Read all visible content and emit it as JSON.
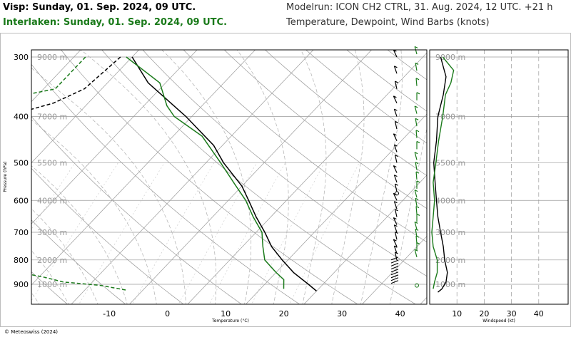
{
  "header": {
    "station_1": "Visp: Sunday, 01. Sep. 2024, 09 UTC.",
    "station_2": "Interlaken: Sunday, 01. Sep. 2024, 09 UTC.",
    "model_run": "Modelrun: ICON CH2 CTRL, 31. Aug. 2024, 12 UTC. +21 h",
    "variables": "Temperature, Dewpoint, Wind Barbs (knots)"
  },
  "footer": {
    "copyright": "© Meteoswiss (2024)"
  },
  "colors": {
    "station_1": "#000000",
    "station_2": "#1a7a1a",
    "grid": "#9a9a9a"
  },
  "chart_data": [
    {
      "type": "line",
      "name": "skew-t",
      "xlabel": "Temperature (°C)",
      "ylabel": "Pressure (hPa)",
      "x_ticks": [
        -10,
        0,
        10,
        20,
        30,
        40
      ],
      "y_ticks": [
        300,
        400,
        500,
        600,
        700,
        800,
        900
      ],
      "altitude_labels": [
        {
          "label": "9000 m",
          "p": 300
        },
        {
          "label": "7000 m",
          "p": 400
        },
        {
          "label": "5500 m",
          "p": 500
        },
        {
          "label": "4000 m",
          "p": 600
        },
        {
          "label": "3000 m",
          "p": 700
        },
        {
          "label": "2000 m",
          "p": 800
        },
        {
          "label": "1000 m",
          "p": 900
        }
      ],
      "series": [
        {
          "station": "Visp",
          "variable": "temperature",
          "points": [
            [
              300,
              -40
            ],
            [
              340,
              -33
            ],
            [
              400,
              -21
            ],
            [
              460,
              -11.5
            ],
            [
              500,
              -7
            ],
            [
              560,
              0
            ],
            [
              600,
              3.5
            ],
            [
              650,
              7.5
            ],
            [
              700,
              11.5
            ],
            [
              750,
              15
            ],
            [
              800,
              19
            ],
            [
              850,
              23
            ],
            [
              900,
              27.5
            ],
            [
              930,
              30
            ]
          ]
        },
        {
          "station": "Visp",
          "variable": "dewpoint",
          "points": [
            [
              300,
              -42
            ],
            [
              350,
              -43
            ],
            [
              375,
              -46
            ],
            [
              400,
              -52
            ],
            [
              425,
              -55
            ],
            [
              450,
              -65
            ],
            [
              470,
              -63
            ],
            [
              490,
              -50
            ],
            [
              510,
              -57
            ],
            [
              540,
              -60
            ],
            [
              570,
              -56
            ],
            [
              600,
              -53
            ],
            [
              640,
              -46
            ],
            [
              680,
              -40
            ],
            [
              720,
              -33
            ],
            [
              760,
              -30
            ],
            [
              800,
              -27
            ],
            [
              850,
              -25
            ],
            [
              880,
              -26
            ],
            [
              910,
              -24
            ]
          ]
        },
        {
          "station": "Interlaken",
          "variable": "temperature",
          "points": [
            [
              300,
              -41
            ],
            [
              340,
              -31
            ],
            [
              380,
              -26
            ],
            [
              400,
              -23
            ],
            [
              440,
              -15
            ],
            [
              500,
              -7.5
            ],
            [
              560,
              -1
            ],
            [
              600,
              3
            ],
            [
              650,
              7
            ],
            [
              700,
              11
            ],
            [
              750,
              13.5
            ],
            [
              800,
              16
            ],
            [
              850,
              20
            ],
            [
              880,
              22.5
            ],
            [
              920,
              24
            ]
          ]
        },
        {
          "station": "Interlaken",
          "variable": "dewpoint",
          "points": [
            [
              300,
              -48
            ],
            [
              350,
              -48
            ],
            [
              380,
              -60
            ],
            [
              400,
              -60
            ],
            [
              440,
              -63
            ],
            [
              470,
              -75
            ],
            [
              500,
              -70
            ],
            [
              520,
              -64
            ],
            [
              550,
              -60
            ],
            [
              580,
              -59
            ],
            [
              600,
              -57
            ],
            [
              640,
              -52
            ],
            [
              680,
              -43
            ],
            [
              720,
              -37
            ],
            [
              760,
              -31
            ],
            [
              790,
              -27
            ],
            [
              820,
              -33
            ],
            [
              850,
              -24
            ],
            [
              870,
              -19
            ],
            [
              890,
              -15
            ],
            [
              905,
              -8
            ],
            [
              925,
              -3
            ]
          ]
        }
      ],
      "grid": true
    },
    {
      "type": "line",
      "name": "wind-speed",
      "xlabel": "Windspeed (kt)",
      "x_ticks": [
        10,
        20,
        30,
        40
      ],
      "xlim": [
        0,
        50
      ],
      "altitude_labels": [
        "9000 m",
        "7000 m",
        "5500 m",
        "4000 m",
        "3000 m",
        "2000 m",
        "1000 m"
      ],
      "series": [
        {
          "station": "Visp",
          "points": [
            [
              300,
              4
            ],
            [
              330,
              6
            ],
            [
              360,
              5
            ],
            [
              400,
              3
            ],
            [
              450,
              2.5
            ],
            [
              500,
              1.5
            ],
            [
              550,
              2
            ],
            [
              600,
              2.5
            ],
            [
              650,
              3
            ],
            [
              700,
              4
            ],
            [
              750,
              5
            ],
            [
              800,
              5.5
            ],
            [
              850,
              6.5
            ],
            [
              890,
              6
            ],
            [
              920,
              4.5
            ],
            [
              935,
              3
            ]
          ]
        },
        {
          "station": "Interlaken",
          "points": [
            [
              300,
              4
            ],
            [
              320,
              8
            ],
            [
              340,
              7
            ],
            [
              360,
              5
            ],
            [
              400,
              4
            ],
            [
              450,
              2.5
            ],
            [
              500,
              1.5
            ],
            [
              550,
              0.5
            ],
            [
              600,
              1
            ],
            [
              650,
              0.5
            ],
            [
              700,
              0
            ],
            [
              750,
              0.5
            ],
            [
              800,
              2
            ],
            [
              850,
              2
            ],
            [
              890,
              1
            ],
            [
              920,
              0.5
            ]
          ]
        }
      ],
      "grid": true
    }
  ]
}
